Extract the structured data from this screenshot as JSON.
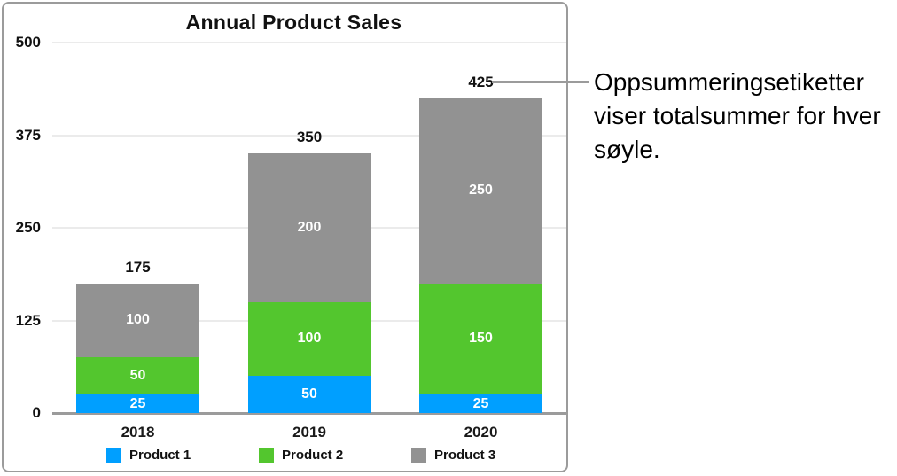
{
  "annotation": {
    "text": "Oppsummeringsetiketter viser totalsummer for hver søyle."
  },
  "chart_data": {
    "type": "bar",
    "stacked": true,
    "title": "Annual Product Sales",
    "categories": [
      "2018",
      "2019",
      "2020"
    ],
    "series": [
      {
        "name": "Product 1",
        "color": "#009fff",
        "values": [
          25,
          50,
          25
        ]
      },
      {
        "name": "Product 2",
        "color": "#53c62e",
        "values": [
          50,
          100,
          150
        ]
      },
      {
        "name": "Product 3",
        "color": "#929292",
        "values": [
          100,
          200,
          250
        ]
      }
    ],
    "totals": [
      175,
      350,
      425
    ],
    "y_ticks": [
      0,
      125,
      250,
      375,
      500
    ],
    "ylim": [
      0,
      500
    ],
    "xlabel": "",
    "ylabel": "",
    "grid": true,
    "legend_position": "bottom",
    "colors": {
      "gridline": "#ebebeb",
      "axis": "#9b9b9b",
      "panel_border": "#9b9b9b",
      "label_text": "#111111",
      "segment_label_text": "#ffffff"
    }
  }
}
